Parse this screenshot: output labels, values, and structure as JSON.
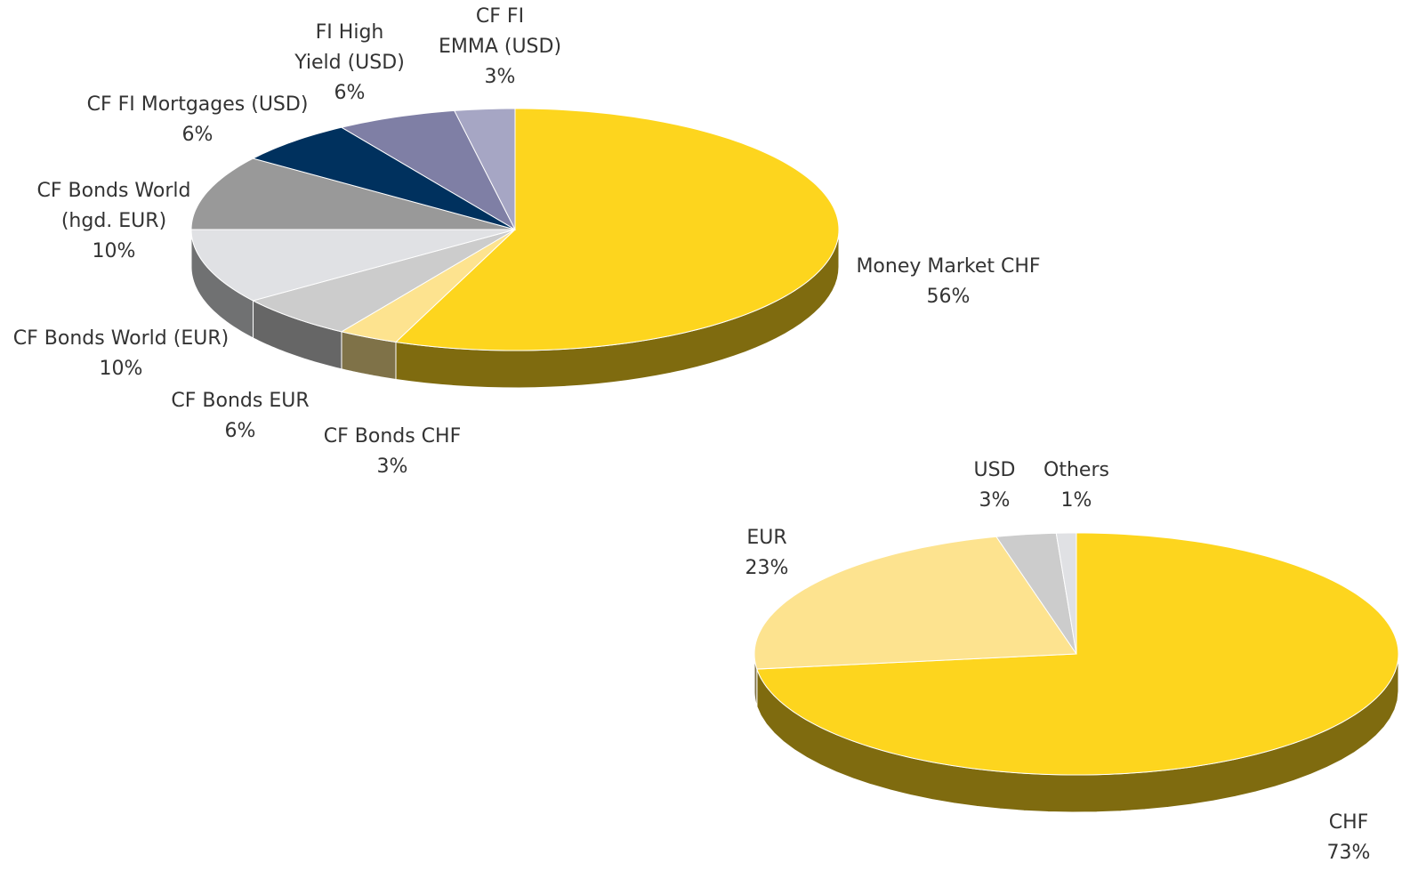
{
  "chart_data": [
    {
      "type": "pie",
      "categories": [
        "Money Market CHF",
        "CF Bonds CHF",
        "CF Bonds EUR",
        "CF Bonds World (EUR)",
        "CF Bonds World\n(hgd. EUR)",
        "CF FI Mortgages (USD)",
        "FI High\nYield (USD)",
        "CF FI\nEMMA (USD)"
      ],
      "values": [
        56,
        3,
        6,
        10,
        10,
        6,
        6,
        3
      ],
      "value_labels": [
        "56%",
        "3%",
        "6%",
        "10%",
        "10%",
        "6%",
        "6%",
        "3%"
      ],
      "colors": [
        "#FDD51E",
        "#FDE38F",
        "#CCCCCC",
        "#E0E1E4",
        "#999999",
        "#00315E",
        "#7F7FA5",
        "#A6A6C4"
      ]
    },
    {
      "type": "pie",
      "categories": [
        "CHF",
        "EUR",
        "USD",
        "Others"
      ],
      "values": [
        73,
        23,
        3,
        1
      ],
      "value_labels": [
        "73%",
        "23%",
        "3%",
        "1%"
      ],
      "colors": [
        "#FDD51E",
        "#FDE38F",
        "#CCCCCC",
        "#E0E1E4"
      ]
    }
  ]
}
